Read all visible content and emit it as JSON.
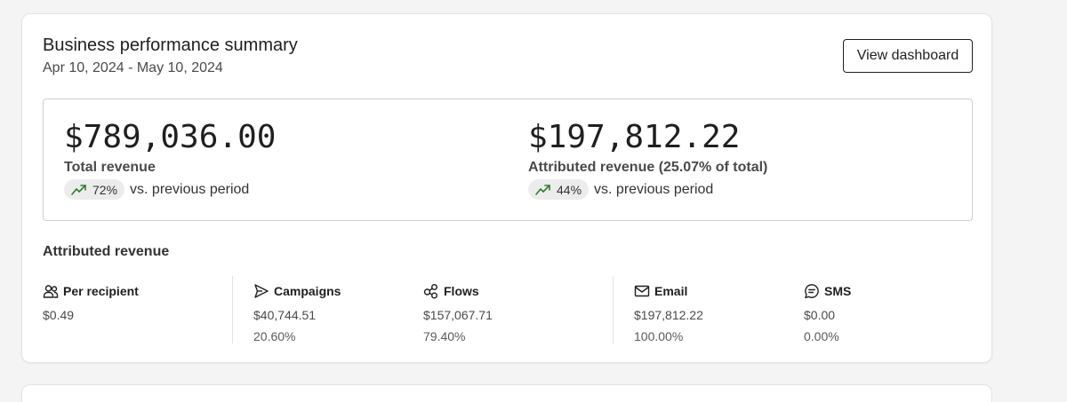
{
  "header": {
    "title": "Business performance summary",
    "date_range": "Apr 10, 2024 - May 10, 2024",
    "view_dashboard_label": "View dashboard"
  },
  "kpis": [
    {
      "value": "$789,036.00",
      "label": "Total revenue",
      "change": "72%",
      "change_direction": "up",
      "comparison": "vs. previous period"
    },
    {
      "value": "$197,812.22",
      "label": "Attributed revenue (25.07% of total)",
      "change": "44%",
      "change_direction": "up",
      "comparison": "vs. previous period"
    }
  ],
  "attributed": {
    "title": "Attributed revenue",
    "metrics": [
      {
        "icon": "users-icon",
        "label": "Per recipient",
        "value": "$0.49",
        "pct": ""
      },
      {
        "icon": "send-icon",
        "label": "Campaigns",
        "value": "$40,744.51",
        "pct": "20.60%"
      },
      {
        "icon": "flows-icon",
        "label": "Flows",
        "value": "$157,067.71",
        "pct": "79.40%"
      },
      {
        "icon": "mail-icon",
        "label": "Email",
        "value": "$197,812.22",
        "pct": "100.00%"
      },
      {
        "icon": "sms-icon",
        "label": "SMS",
        "value": "$0.00",
        "pct": "0.00%"
      }
    ]
  },
  "colors": {
    "trend_up": "#2e7d32",
    "card_bg": "#ffffff",
    "page_bg": "#f4f4f5"
  }
}
